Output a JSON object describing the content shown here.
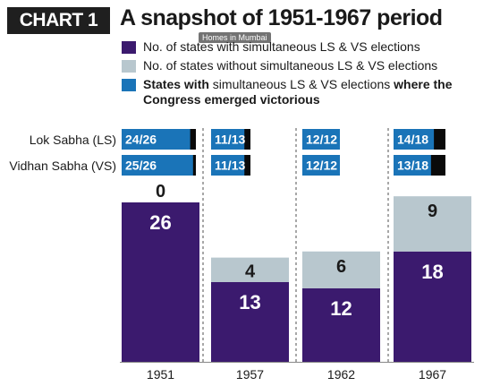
{
  "header": {
    "tag": "CHART 1",
    "title": "A snapshot of 1951-1967 period",
    "watermark": "Homes in Mumbai"
  },
  "legend": [
    {
      "text": "No. of states with simultaneous LS & VS elections",
      "color": "#3b1a6e"
    },
    {
      "text": "No. of states without simultaneous LS & VS elections",
      "color": "#b8c7ce"
    },
    {
      "bold1": "States with",
      "normal": " simultaneous LS & VS elections ",
      "bold2": "where the Congress emerged victorious",
      "color": "#1a74b8"
    }
  ],
  "row_labels": {
    "ls": "Lok Sabha (LS)",
    "vs": "Vidhan Sabha (VS)"
  },
  "chart_data": {
    "type": "bar",
    "stacked": true,
    "categories": [
      "1951",
      "1957",
      "1962",
      "1967"
    ],
    "series": [
      {
        "name": "No. of states with simultaneous LS & VS elections",
        "values": [
          26,
          13,
          12,
          18
        ],
        "color": "#3b1a6e"
      },
      {
        "name": "No. of states without simultaneous LS & VS elections",
        "values": [
          0,
          4,
          6,
          9
        ],
        "color": "#b8c7ce"
      }
    ],
    "congress_victories": {
      "lok_sabha": [
        "24/26",
        "11/13",
        "12/12",
        "14/18"
      ],
      "vidhan_sabha": [
        "25/26",
        "11/13",
        "12/12",
        "13/18"
      ]
    }
  }
}
